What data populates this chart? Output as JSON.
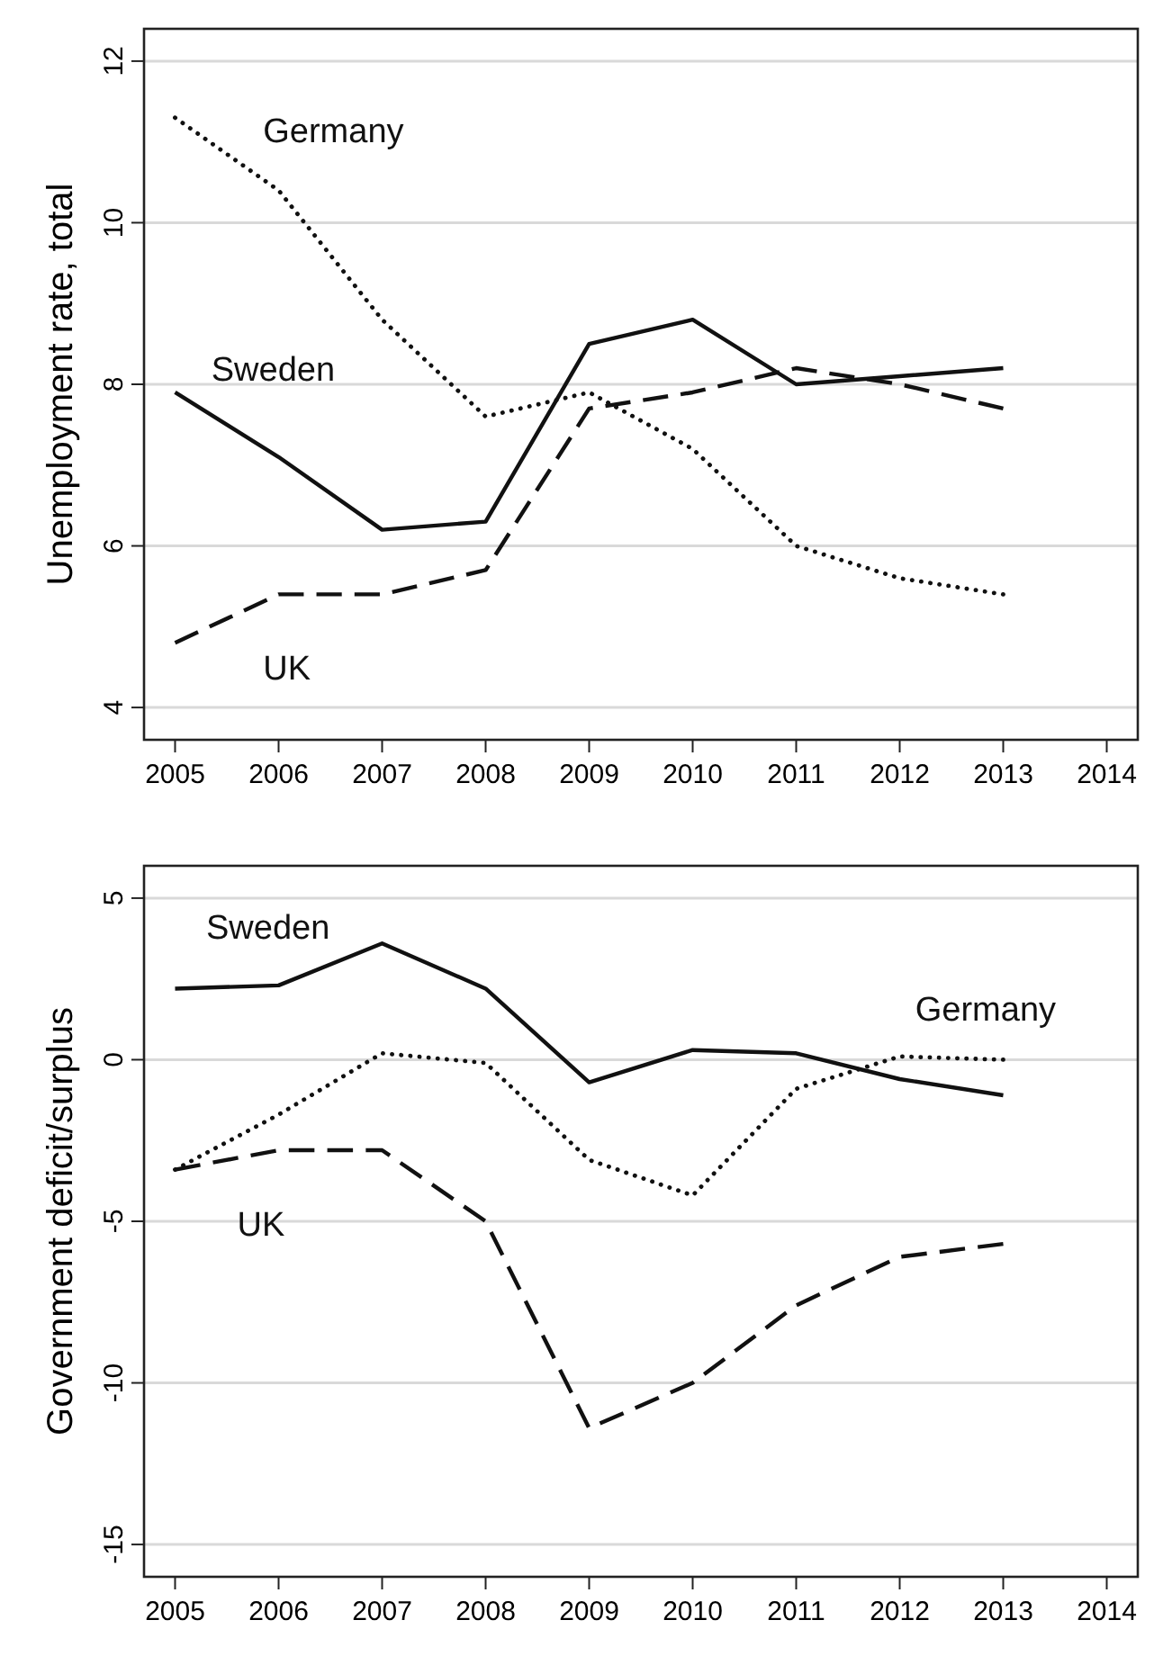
{
  "chart_data": [
    {
      "type": "line",
      "ylabel": "Unemployment rate, total",
      "x": [
        2005,
        2006,
        2007,
        2008,
        2009,
        2010,
        2011,
        2012,
        2013
      ],
      "xlim": [
        2004.7,
        2014.3
      ],
      "xticks": [
        2005,
        2006,
        2007,
        2008,
        2009,
        2010,
        2011,
        2012,
        2013,
        2014
      ],
      "ylim": [
        3.6,
        12.4
      ],
      "yticks": [
        4,
        6,
        8,
        10,
        12
      ],
      "grid": "y",
      "legend": false,
      "series": [
        {
          "name": "Sweden",
          "color": "#111111",
          "line_style": "solid",
          "values": [
            7.9,
            7.1,
            6.2,
            6.3,
            8.5,
            8.8,
            8.0,
            8.1,
            8.2
          ]
        },
        {
          "name": "Germany",
          "color": "#111111",
          "line_style": "dotted",
          "values": [
            11.3,
            10.4,
            8.8,
            7.6,
            7.9,
            7.2,
            6.0,
            5.6,
            5.4
          ]
        },
        {
          "name": "UK",
          "color": "#111111",
          "line_style": "dashed",
          "values": [
            4.8,
            5.4,
            5.4,
            5.7,
            7.7,
            7.9,
            8.2,
            8.0,
            7.7
          ]
        }
      ]
    },
    {
      "type": "line",
      "ylabel": "Government deficit/surplus",
      "x": [
        2005,
        2006,
        2007,
        2008,
        2009,
        2010,
        2011,
        2012,
        2013
      ],
      "xlim": [
        2004.7,
        2014.3
      ],
      "xticks": [
        2005,
        2006,
        2007,
        2008,
        2009,
        2010,
        2011,
        2012,
        2013,
        2014
      ],
      "ylim": [
        -16,
        6
      ],
      "yticks": [
        -15,
        -10,
        -5,
        0,
        5
      ],
      "grid": "y",
      "legend": false,
      "series": [
        {
          "name": "Sweden",
          "color": "#111111",
          "line_style": "solid",
          "values": [
            2.2,
            2.3,
            3.6,
            2.2,
            -0.7,
            0.3,
            0.2,
            -0.6,
            -1.1
          ]
        },
        {
          "name": "Germany",
          "color": "#111111",
          "line_style": "dotted",
          "values": [
            -3.4,
            -1.7,
            0.2,
            -0.1,
            -3.1,
            -4.2,
            -0.9,
            0.1,
            0.0
          ]
        },
        {
          "name": "UK",
          "color": "#111111",
          "line_style": "dashed",
          "values": [
            -3.4,
            -2.8,
            -2.8,
            -5.0,
            -11.4,
            -10.0,
            -7.6,
            -6.1,
            -5.7
          ]
        }
      ]
    }
  ]
}
